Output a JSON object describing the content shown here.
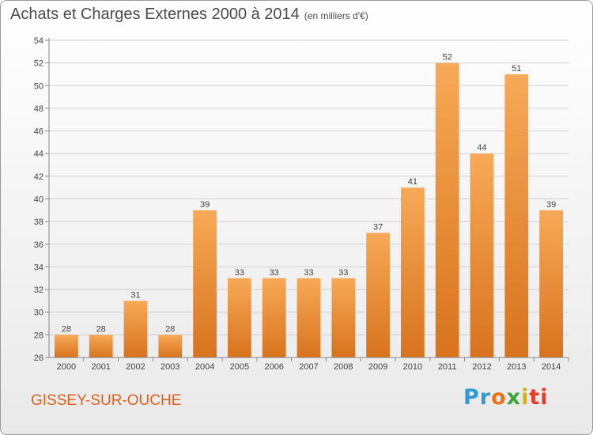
{
  "title": "Achats et Charges Externes 2000 à 2014",
  "subtitle": "(en milliers d'€)",
  "commune": "GISSEY-SUR-OUCHE",
  "logo": {
    "p1": "Pr",
    "p2": "o",
    "p3": "x",
    "p4": "i",
    "p5": "ti"
  },
  "colors": {
    "bar_light": "#f7a957",
    "bar_dark": "#d8731e",
    "text": "#444444",
    "commune": "#e0601a"
  },
  "chart_data": {
    "type": "bar",
    "title": "Achats et Charges Externes 2000 à 2014",
    "subtitle": "(en milliers d'€)",
    "categories": [
      "2000",
      "2001",
      "2002",
      "2003",
      "2004",
      "2005",
      "2006",
      "2007",
      "2008",
      "2009",
      "2010",
      "2011",
      "2012",
      "2013",
      "2014"
    ],
    "values": [
      28,
      28,
      31,
      28,
      39,
      33,
      33,
      33,
      33,
      37,
      41,
      52,
      44,
      51,
      39
    ],
    "ylim": [
      26,
      54
    ],
    "yticks": [
      26,
      28,
      30,
      32,
      34,
      36,
      38,
      40,
      42,
      44,
      46,
      48,
      50,
      52,
      54
    ],
    "grid": true,
    "data_labels": true
  }
}
